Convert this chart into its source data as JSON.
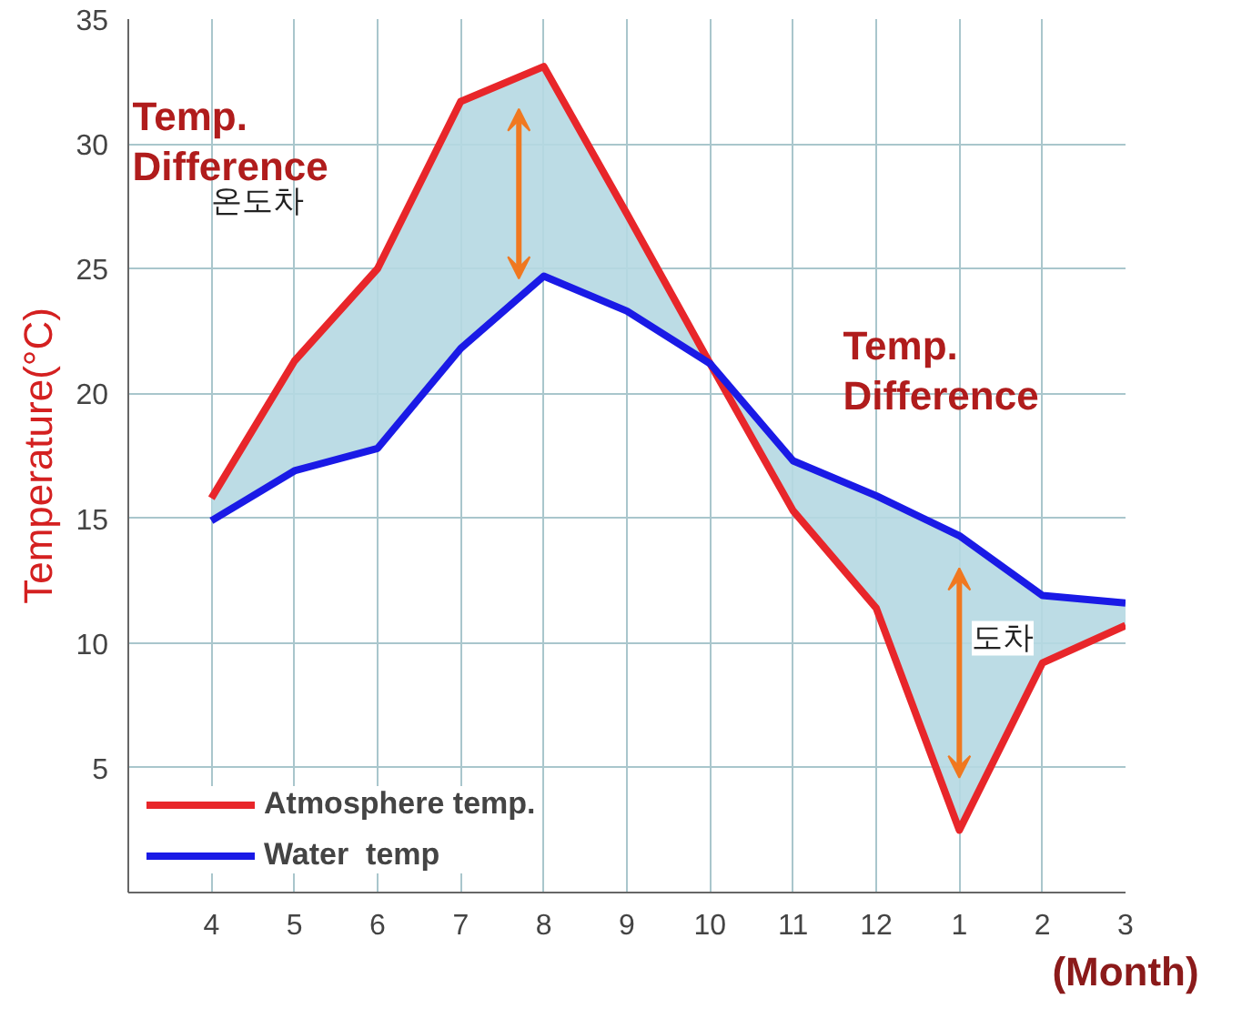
{
  "chart_data": {
    "type": "line",
    "xlabel": "(Month)",
    "ylabel": "Temperature(°C)",
    "categories": [
      "4",
      "5",
      "6",
      "7",
      "8",
      "9",
      "10",
      "11",
      "12",
      "1",
      "2",
      "3"
    ],
    "series": [
      {
        "name": "Atmosphere temp.",
        "color": "#e8262a",
        "values": [
          15.8,
          21.3,
          25.0,
          31.7,
          33.1,
          27.2,
          21.2,
          15.3,
          11.4,
          2.5,
          9.2,
          10.7
        ],
        "lower": [
          14.9,
          16.9,
          17.8,
          21.8,
          24.7,
          23.3,
          21.2,
          17.3,
          15.9,
          14.3,
          11.9,
          11.6
        ],
        "upper": [
          15.8,
          21.3,
          25.0,
          31.7,
          33.1,
          27.2,
          21.2,
          15.3,
          11.4,
          2.5,
          9.2,
          10.7
        ]
      },
      {
        "name": "Water  temp",
        "color": "#1a1ae6",
        "values": [
          14.9,
          16.9,
          17.8,
          21.8,
          24.7,
          23.3,
          21.2,
          17.3,
          15.9,
          14.3,
          11.9,
          11.6
        ]
      }
    ],
    "ylim": [
      0,
      35
    ],
    "yticks": [
      5,
      10,
      15,
      20,
      25,
      30,
      35
    ],
    "grid": true,
    "legend": "bottom left",
    "marker": "none",
    "line_style": "solid",
    "annotations": [
      "Temp. Difference",
      "온도차",
      "Temp. Difference",
      "도차"
    ]
  }
}
